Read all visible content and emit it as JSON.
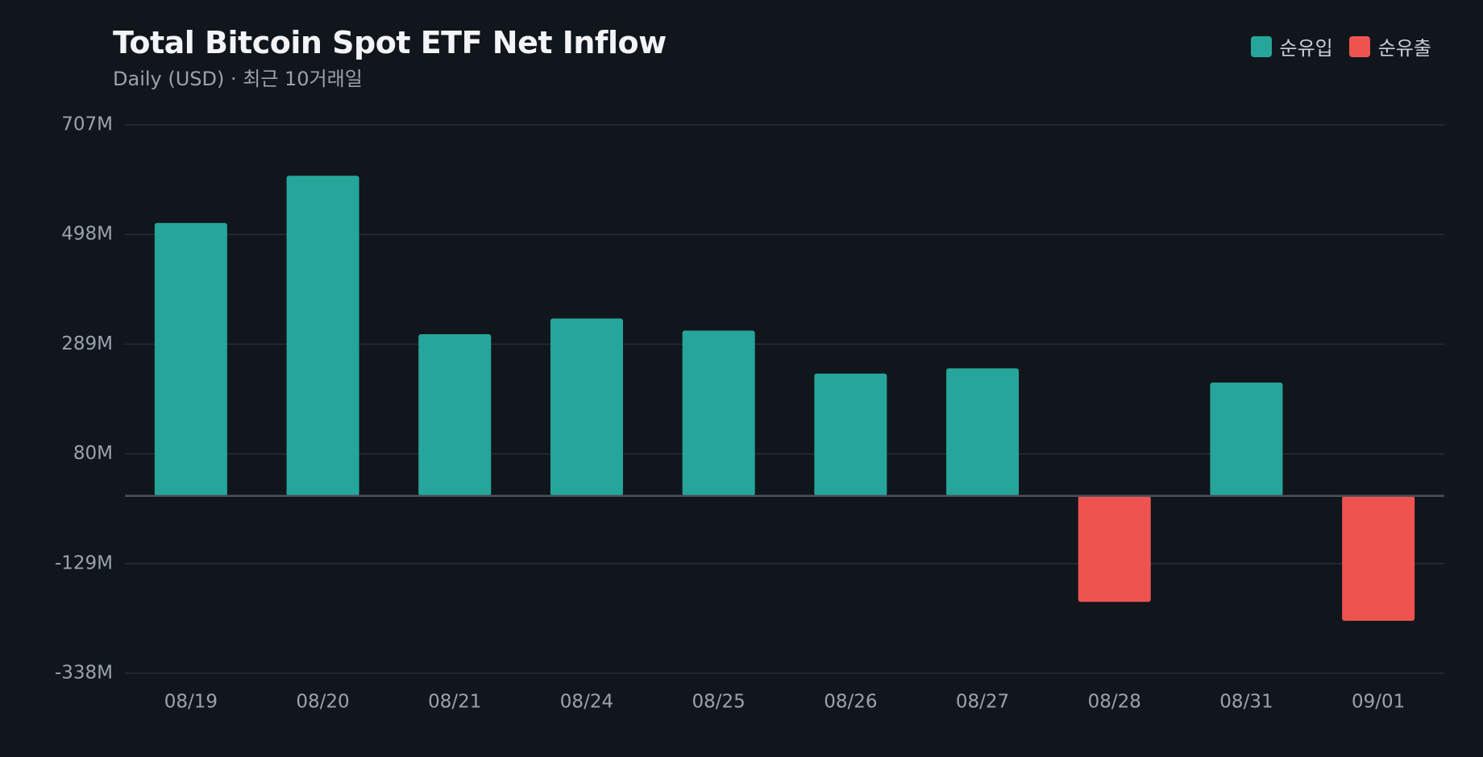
{
  "header": {
    "title": "Total Bitcoin Spot ETF Net Inflow",
    "subtitle": "Daily (USD) · 최근 10거래일"
  },
  "legend": [
    {
      "label": "순유입",
      "color": "#26a69a"
    },
    {
      "label": "순유출",
      "color": "#ef5350"
    }
  ],
  "chart_data": {
    "type": "bar",
    "title": "Total Bitcoin Spot ETF Net Inflow",
    "subtitle": "Daily (USD) · 최근 10거래일",
    "categories": [
      "08/19",
      "08/20",
      "08/21",
      "08/24",
      "08/25",
      "08/26",
      "08/27",
      "08/28",
      "08/31",
      "09/01"
    ],
    "values": [
      520,
      610,
      308,
      338,
      315,
      233,
      243,
      -202,
      216,
      -238
    ],
    "ylim": [
      -338,
      707
    ],
    "yticks": [
      707,
      498,
      289,
      80,
      -129,
      -338
    ],
    "ytick_labels": [
      "707M",
      "498M",
      "289M",
      "80M",
      "-129M",
      "-338M"
    ],
    "positive_color": "#26a69a",
    "negative_color": "#ef5350",
    "grid": true,
    "legend_position": "top-right"
  }
}
